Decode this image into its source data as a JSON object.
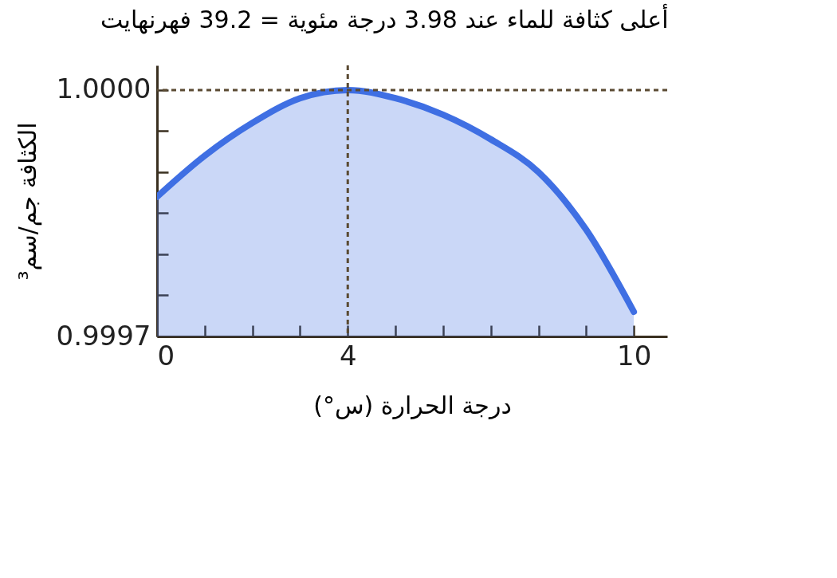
{
  "chart_data": {
    "type": "area",
    "title": "أعلى كثافة للماء عند 3.98 درجة مئوية = 39.2 فهرنهايت",
    "xlabel": "درجة الحرارة (س°)",
    "ylabel": "الكثافة جم/سم³",
    "x": [
      0,
      1,
      2,
      3,
      4,
      5,
      6,
      7,
      8,
      9,
      10
    ],
    "series": [
      {
        "color": "#3f6fe3",
        "values": [
          0.99987,
          0.99992,
          0.99996,
          0.99999,
          1.0,
          0.99999,
          0.99997,
          0.99994,
          0.9999,
          0.99983,
          0.99973
        ]
      }
    ],
    "xlim": [
      0,
      10.7
    ],
    "xticks": [
      0,
      {
        "value": 1,
        "label": null
      },
      {
        "value": 2,
        "label": null
      },
      {
        "value": 3,
        "label": null
      },
      4,
      {
        "value": 5,
        "label": null
      },
      {
        "value": 6,
        "label": null
      },
      {
        "value": 7,
        "label": null
      },
      {
        "value": 8,
        "label": null
      },
      {
        "value": 9,
        "label": null
      },
      10
    ],
    "ylim": [
      0.9997,
      1.00003
    ],
    "yticks": [
      {
        "value": 0.9997,
        "label": "0.9997"
      },
      {
        "value": 0.99975,
        "label": null
      },
      {
        "value": 0.9998,
        "label": null
      },
      {
        "value": 0.99985,
        "label": null
      },
      {
        "value": 0.9999,
        "label": null
      },
      {
        "value": 0.99995,
        "label": null
      },
      {
        "value": 1.0,
        "label": "1.0000"
      }
    ],
    "ref_lines": [
      {
        "axis": "x",
        "value": 4,
        "line_style": "dashed",
        "color": "#5a4a32"
      },
      {
        "axis": "y",
        "value": 1.0,
        "line_style": "dashed",
        "color": "#5a4a32"
      }
    ]
  }
}
